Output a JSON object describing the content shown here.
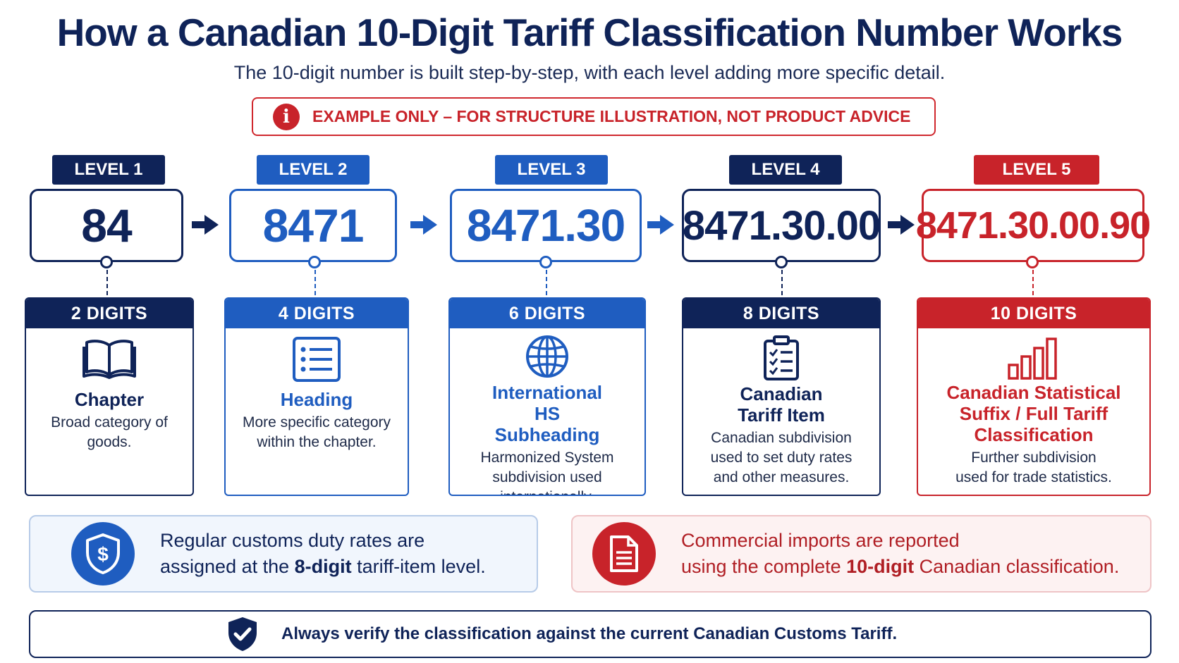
{
  "title": "How a Canadian 10-Digit Tariff Classification Number Works",
  "subtitle": "The 10-digit number is built step-by-step, with each level adding more specific detail.",
  "warning": {
    "icon": "info-icon",
    "text": "EXAMPLE ONLY – FOR STRUCTURE ILLUSTRATION, NOT PRODUCT ADVICE"
  },
  "colors": {
    "navy": "#0f2358",
    "blue": "#1f5dc0",
    "red": "#c8232a"
  },
  "levels": [
    {
      "label": "LEVEL 1",
      "code": "84",
      "digits": "2 DIGITS",
      "icon": "book-icon",
      "title": "Chapter",
      "desc": "Broad category of goods."
    },
    {
      "label": "LEVEL 2",
      "code": "8471",
      "digits": "4 DIGITS",
      "icon": "list-icon",
      "title": "Heading",
      "desc": "More specific category within the chapter."
    },
    {
      "label": "LEVEL 3",
      "code": "8471.30",
      "digits": "6 DIGITS",
      "icon": "globe-icon",
      "title": "International HS Subheading",
      "desc": "Harmonized System subdivision used internationally."
    },
    {
      "label": "LEVEL 4",
      "code": "8471.30.00",
      "digits": "8 DIGITS",
      "icon": "clipboard-checklist-icon",
      "title": "Canadian Tariff Item",
      "desc": "Canadian subdivision used to set duty rates and other measures."
    },
    {
      "label": "LEVEL 5",
      "code": "8471.30.00.90",
      "digits": "10 DIGITS",
      "icon": "bar-chart-icon",
      "title": "Canadian Statistical Suffix / Full Tariff Classification",
      "desc": "Further subdivision used for trade statistics."
    }
  ],
  "notes": {
    "duty": {
      "icon": "shield-dollar-icon",
      "line1": "Regular customs duty rates are",
      "line2_pre": "assigned at the ",
      "line2_bold": "8-digit",
      "line2_post": " tariff-item level."
    },
    "imports": {
      "icon": "document-icon",
      "line1": "Commercial imports are reported",
      "line2_pre": "using the complete ",
      "line2_bold": "10-digit",
      "line2_post": " Canadian classification."
    }
  },
  "footer": {
    "icon": "shield-check-icon",
    "text": "Always verify the classification against the current Canadian Customs Tariff."
  }
}
